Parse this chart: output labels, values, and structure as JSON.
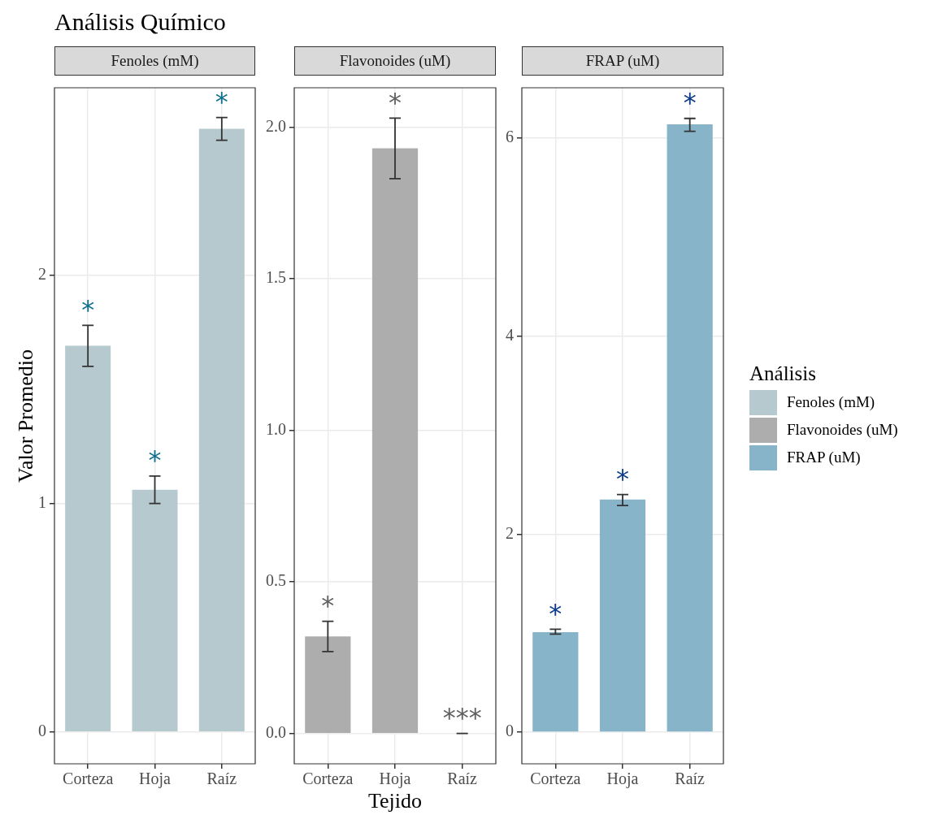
{
  "chart_data": [
    {
      "type": "bar",
      "title": "Análisis Químico",
      "ylabel": "Valor Promedio",
      "categories": [
        "Corteza",
        "Hoja",
        "Raíz"
      ],
      "series": [
        {
          "name": "Fenoles (mM)",
          "color": "#b5c9cf",
          "values": [
            1.69,
            1.06,
            2.64
          ],
          "errors": [
            [
              1.6,
              1.78
            ],
            [
              1.0,
              1.12
            ],
            [
              2.59,
              2.69
            ]
          ]
        }
      ],
      "ylim": [
        -0.14,
        2.82
      ],
      "yticks": [
        0,
        1,
        2
      ],
      "grid": true,
      "annotations": [
        "*",
        "*",
        "*"
      ]
    },
    {
      "type": "bar",
      "xlabel": "Tejido",
      "categories": [
        "Corteza",
        "Hoja",
        "Raíz"
      ],
      "series": [
        {
          "name": "Flavonoides (uM)",
          "color": "#adadad",
          "values": [
            0.32,
            1.93,
            0
          ],
          "errors": [
            [
              0.27,
              0.37
            ],
            [
              1.83,
              2.03
            ],
            [
              0,
              0
            ]
          ]
        }
      ],
      "ylim": [
        -0.1,
        2.13
      ],
      "yticks": [
        {
          "value": 0,
          "label": "0.0"
        },
        0.5,
        {
          "value": 1,
          "label": "1.0"
        },
        1.5,
        {
          "value": 2,
          "label": "2.0"
        }
      ],
      "grid": true,
      "annotations": [
        "*",
        "*",
        "***"
      ]
    },
    {
      "type": "bar",
      "categories": [
        "Corteza",
        "Hoja",
        "Raíz"
      ],
      "legend": "right",
      "legend_title": "Análisis",
      "series": [
        {
          "name": "FRAP (uM)",
          "color": "#88b4ca",
          "values": [
            1.01,
            2.35,
            6.14
          ],
          "errors": [
            [
              0.99,
              1.04
            ],
            [
              2.29,
              2.4
            ],
            [
              6.07,
              6.2
            ]
          ]
        }
      ],
      "ylim": [
        -0.32,
        6.51
      ],
      "yticks": [
        0,
        2,
        4,
        6
      ],
      "grid": true,
      "annotations": [
        "*",
        "*",
        "*"
      ]
    }
  ]
}
